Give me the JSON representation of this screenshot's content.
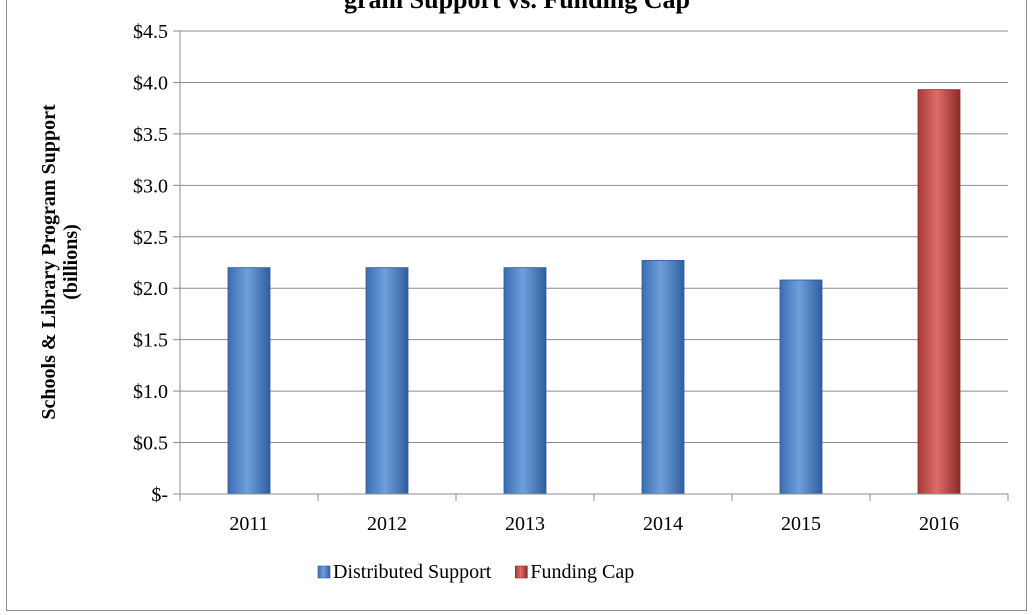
{
  "chart_data": {
    "type": "bar",
    "title": "gram Support vs. Funding Cap",
    "ylabel_line1": "Schools & Library Program Support",
    "ylabel_line2": "(billions)",
    "categories": [
      "2011",
      "2012",
      "2013",
      "2014",
      "2015",
      "2016"
    ],
    "ylim": [
      0,
      4.5
    ],
    "yticks": [
      {
        "value": 0,
        "label": "$-"
      },
      {
        "value": 0.5,
        "label": "$0.5"
      },
      {
        "value": 1.0,
        "label": "$1.0"
      },
      {
        "value": 1.5,
        "label": "$1.5"
      },
      {
        "value": 2.0,
        "label": "$2.0"
      },
      {
        "value": 2.5,
        "label": "$2.5"
      },
      {
        "value": 3.0,
        "label": "$3.0"
      },
      {
        "value": 3.5,
        "label": "$3.5"
      },
      {
        "value": 4.0,
        "label": "$4.0"
      },
      {
        "value": 4.5,
        "label": "$4.5"
      }
    ],
    "series": [
      {
        "name": "Distributed Support",
        "color": "#4a7ebb",
        "values": [
          2.2,
          2.2,
          2.2,
          2.27,
          2.08,
          null
        ]
      },
      {
        "name": "Funding Cap",
        "color": "#c0504d",
        "values": [
          null,
          null,
          null,
          null,
          null,
          3.93
        ]
      }
    ],
    "grid": true,
    "legend_position": "bottom"
  }
}
